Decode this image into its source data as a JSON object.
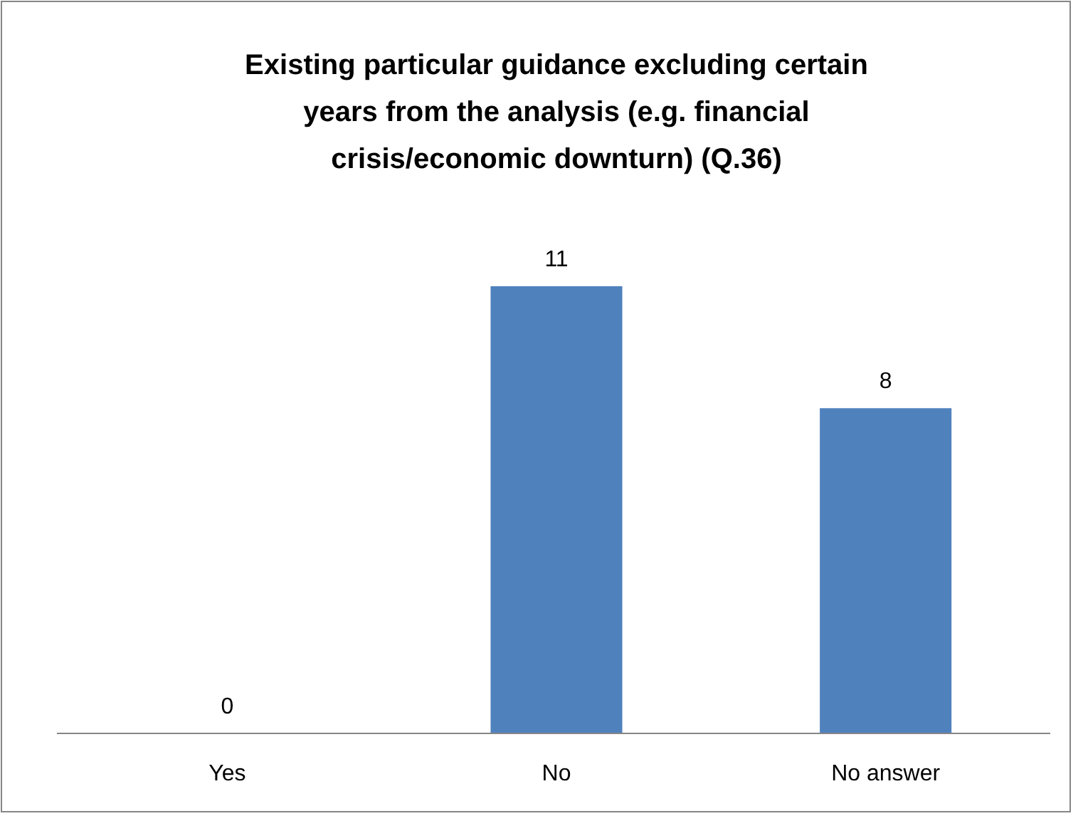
{
  "chart_data": {
    "type": "bar",
    "title": "Existing particular guidance excluding certain years from the analysis (e.g. financial crisis/economic downturn) (Q.36)",
    "categories": [
      "Yes",
      "No",
      "No answer"
    ],
    "values": [
      0,
      11,
      8
    ],
    "color": "#4f81bd",
    "data_labels": true
  }
}
